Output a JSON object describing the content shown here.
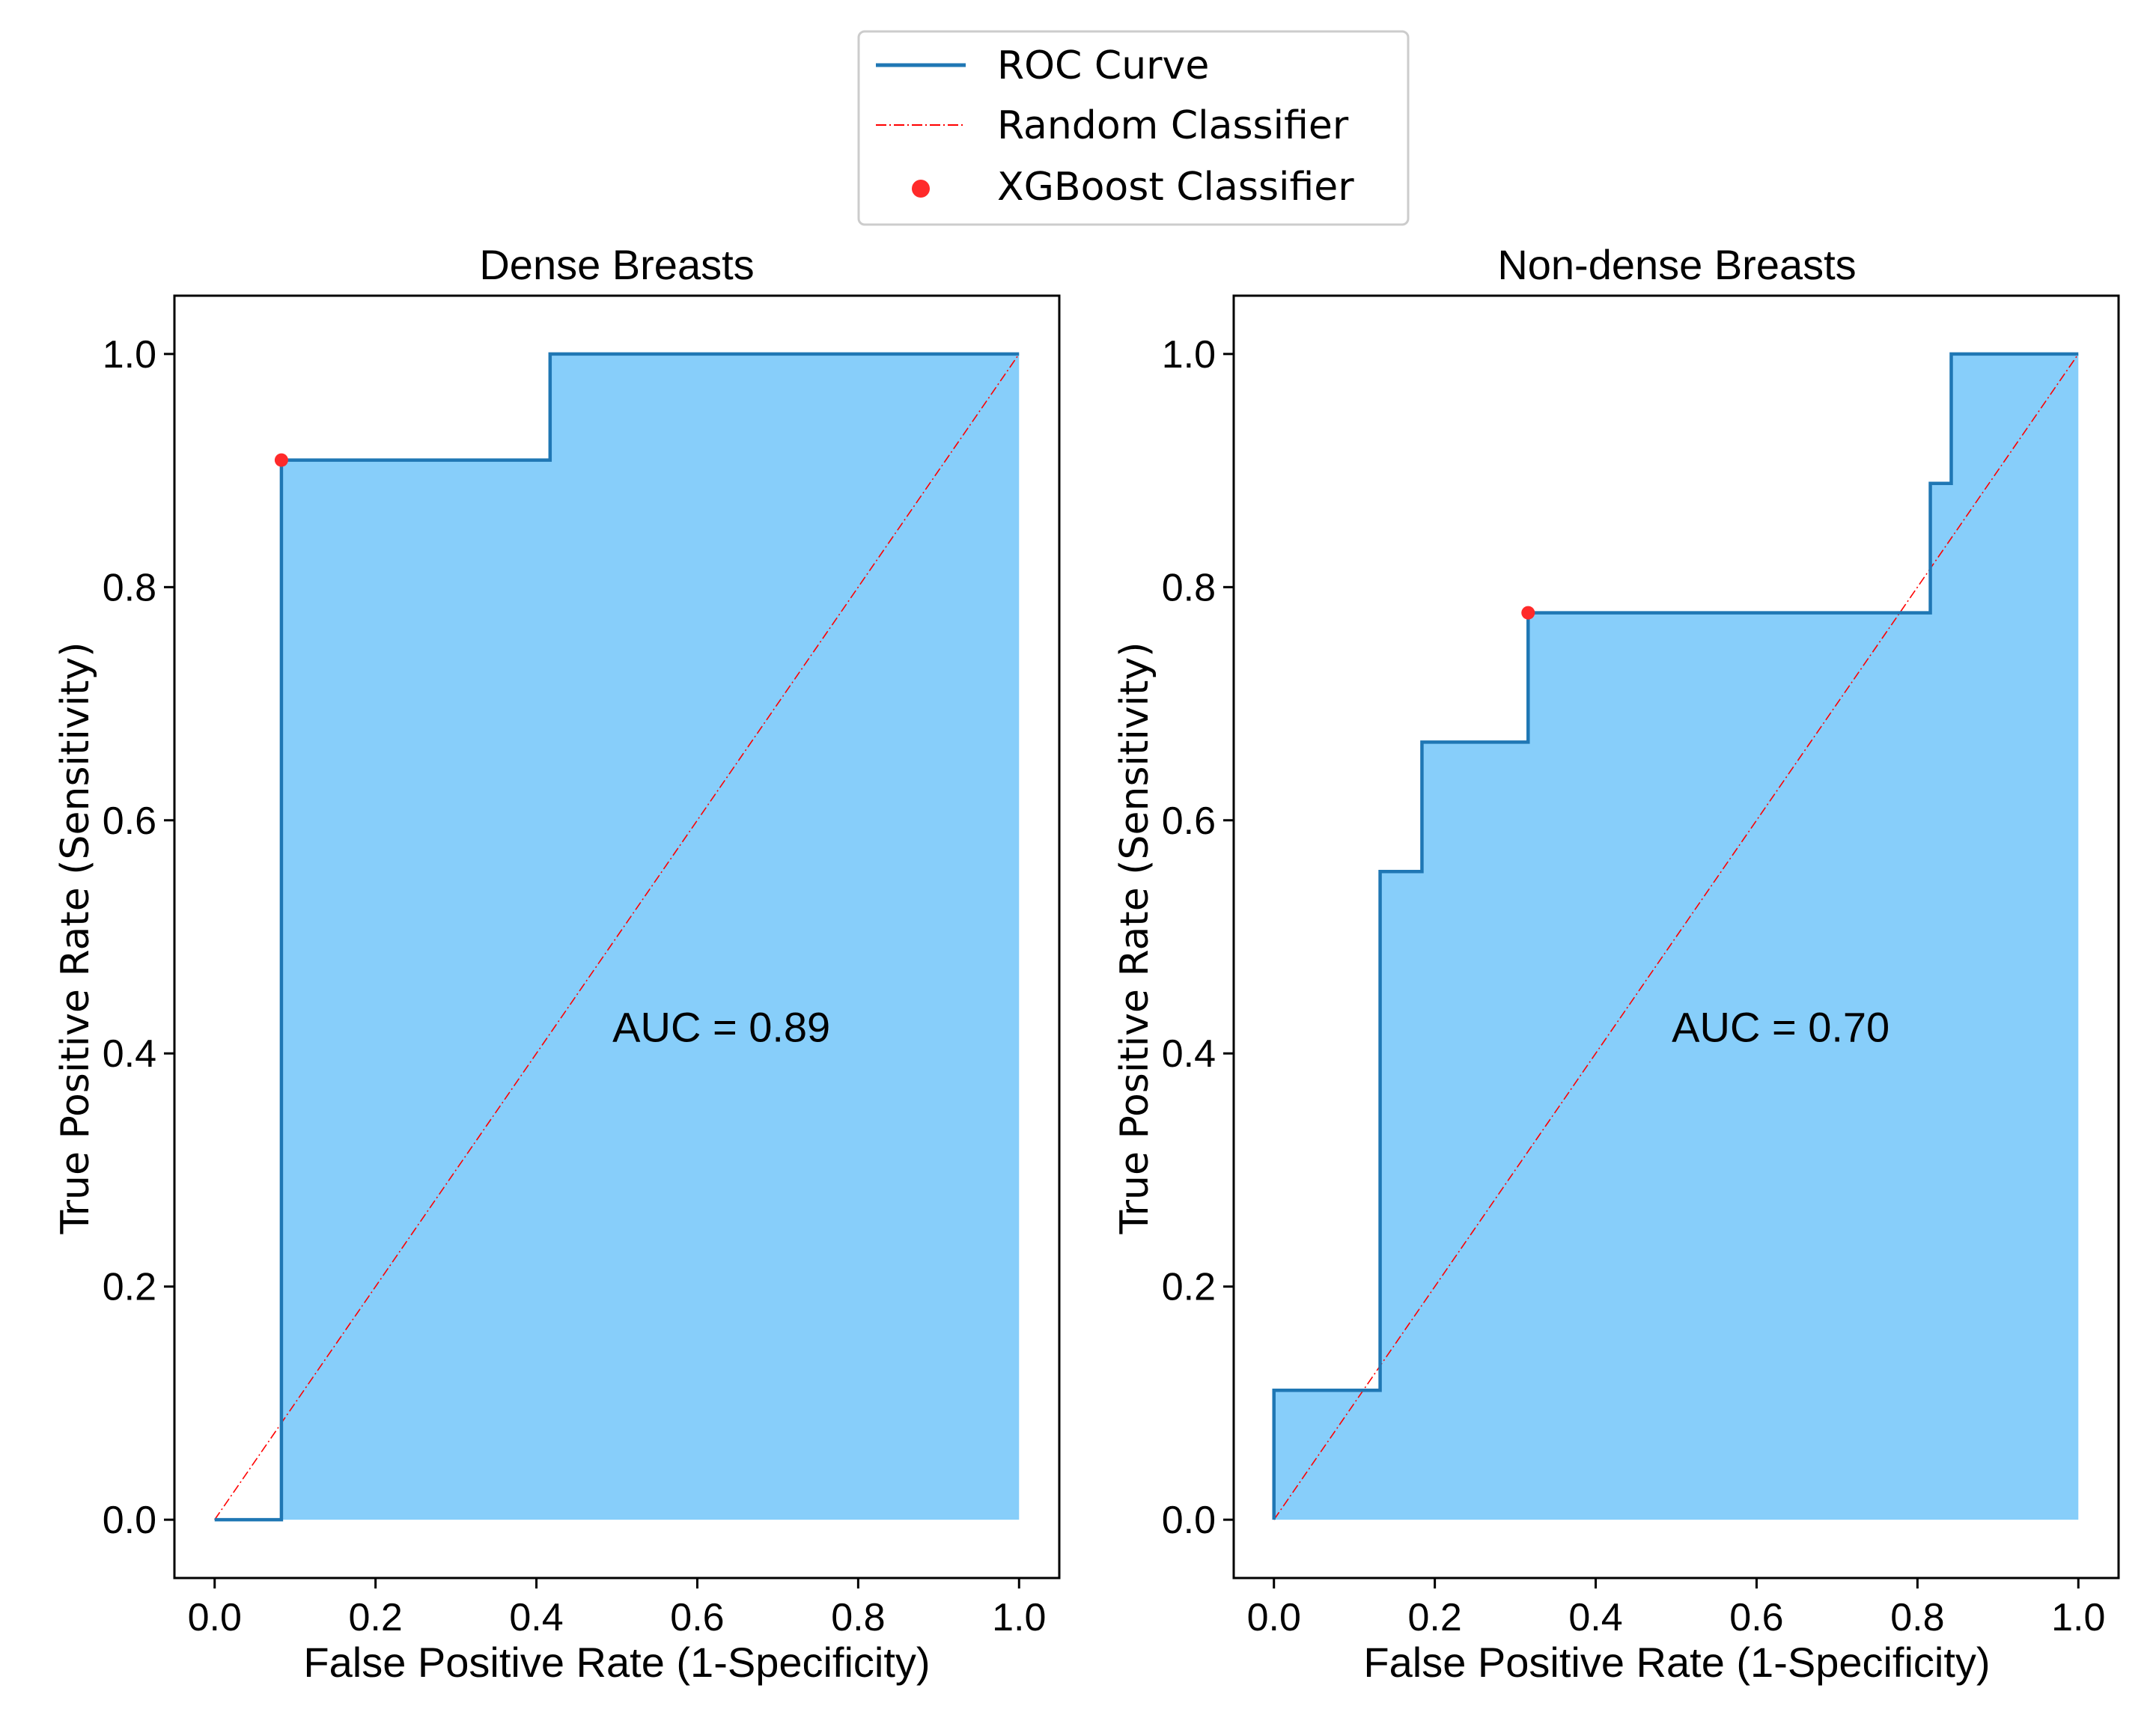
{
  "legend": {
    "roc_label": "ROC Curve",
    "random_label": "Random Classifier",
    "point_label": "XGBoost Classifier"
  },
  "colors": {
    "roc_line": "#1f77b4",
    "fill": "#87cefa",
    "diagonal": "#ff0000",
    "point": "#ff2a2a"
  },
  "chart_data": [
    {
      "type": "line",
      "title": "Dense Breasts",
      "xlabel": "False Positive Rate (1-Specificity)",
      "ylabel": "True Positive Rate (Sensitivity)",
      "xlim": [
        -0.05,
        1.05
      ],
      "ylim": [
        -0.05,
        1.05
      ],
      "xticks": [
        "0.0",
        "0.2",
        "0.4",
        "0.6",
        "0.8",
        "1.0"
      ],
      "yticks": [
        "0.0",
        "0.2",
        "0.4",
        "0.6",
        "0.8",
        "1.0"
      ],
      "annotation": "AUC = 0.89",
      "annotation_pos": [
        0.63,
        0.41
      ],
      "auc": 0.89,
      "roc_x": [
        0.0,
        0.083,
        0.083,
        0.417,
        0.417,
        1.0
      ],
      "roc_y": [
        0.0,
        0.0,
        0.909,
        0.909,
        1.0,
        1.0
      ],
      "diagonal": [
        [
          0,
          0
        ],
        [
          1,
          1
        ]
      ],
      "point": {
        "x": 0.083,
        "y": 0.909
      }
    },
    {
      "type": "line",
      "title": "Non-dense Breasts",
      "xlabel": "False Positive Rate (1-Specificity)",
      "ylabel": "True Positive Rate (Sensitivity)",
      "xlim": [
        -0.05,
        1.05
      ],
      "ylim": [
        -0.05,
        1.05
      ],
      "xticks": [
        "0.0",
        "0.2",
        "0.4",
        "0.6",
        "0.8",
        "1.0"
      ],
      "yticks": [
        "0.0",
        "0.2",
        "0.4",
        "0.6",
        "0.8",
        "1.0"
      ],
      "annotation": "AUC = 0.70",
      "annotation_pos": [
        0.63,
        0.41
      ],
      "auc": 0.7,
      "roc_x": [
        0.0,
        0.0,
        0.132,
        0.132,
        0.184,
        0.184,
        0.316,
        0.316,
        0.816,
        0.816,
        0.842,
        0.842,
        1.0
      ],
      "roc_y": [
        0.0,
        0.111,
        0.111,
        0.556,
        0.556,
        0.667,
        0.667,
        0.778,
        0.778,
        0.889,
        0.889,
        1.0,
        1.0
      ],
      "diagonal": [
        [
          0,
          0
        ],
        [
          1,
          1
        ]
      ],
      "point": {
        "x": 0.316,
        "y": 0.778
      }
    }
  ]
}
